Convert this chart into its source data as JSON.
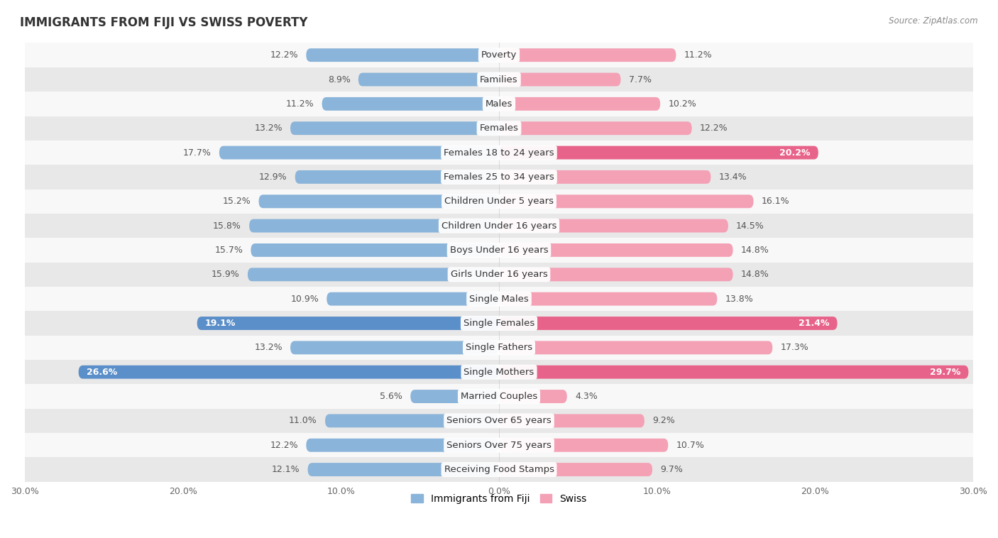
{
  "title": "IMMIGRANTS FROM FIJI VS SWISS POVERTY",
  "source": "Source: ZipAtlas.com",
  "categories": [
    "Poverty",
    "Families",
    "Males",
    "Females",
    "Females 18 to 24 years",
    "Females 25 to 34 years",
    "Children Under 5 years",
    "Children Under 16 years",
    "Boys Under 16 years",
    "Girls Under 16 years",
    "Single Males",
    "Single Females",
    "Single Fathers",
    "Single Mothers",
    "Married Couples",
    "Seniors Over 65 years",
    "Seniors Over 75 years",
    "Receiving Food Stamps"
  ],
  "fiji_values": [
    12.2,
    8.9,
    11.2,
    13.2,
    17.7,
    12.9,
    15.2,
    15.8,
    15.7,
    15.9,
    10.9,
    19.1,
    13.2,
    26.6,
    5.6,
    11.0,
    12.2,
    12.1
  ],
  "swiss_values": [
    11.2,
    7.7,
    10.2,
    12.2,
    20.2,
    13.4,
    16.1,
    14.5,
    14.8,
    14.8,
    13.8,
    21.4,
    17.3,
    29.7,
    4.3,
    9.2,
    10.7,
    9.7
  ],
  "fiji_color": "#8ab4d9",
  "swiss_color": "#f4a0b5",
  "fiji_highlight_indices": [
    11,
    13
  ],
  "swiss_highlight_indices": [
    4,
    11,
    13
  ],
  "fiji_highlight_color": "#5b8fc9",
  "swiss_highlight_color": "#e8638a",
  "background_color": "#f0f0f0",
  "row_bg_light": "#f8f8f8",
  "row_bg_dark": "#e8e8e8",
  "x_max": 30.0,
  "bar_height": 0.55,
  "label_fontsize": 9.5,
  "value_fontsize": 9,
  "title_fontsize": 12,
  "legend_labels": [
    "Immigrants from Fiji",
    "Swiss"
  ],
  "x_ticks": [
    -30,
    -20,
    -10,
    0,
    10,
    20,
    30
  ]
}
